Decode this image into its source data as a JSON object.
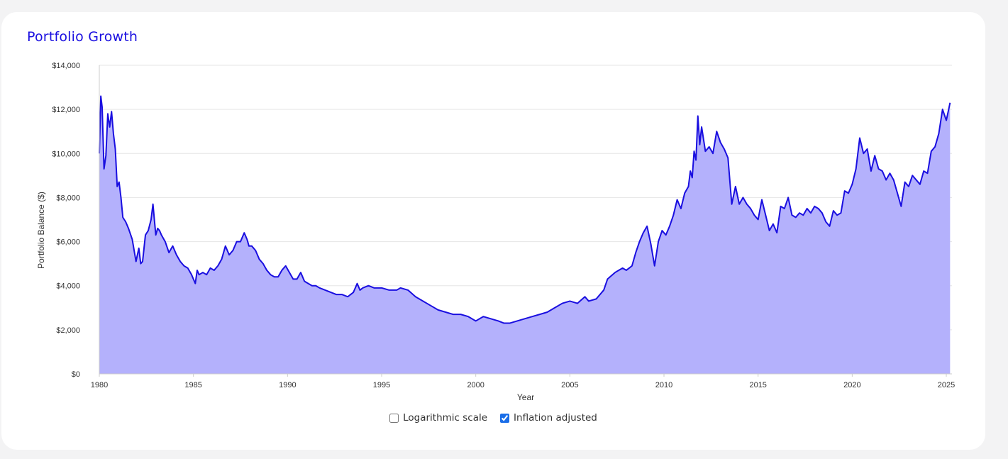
{
  "card": {
    "title": "Portfolio Growth"
  },
  "colors": {
    "title": "#1a0fe0",
    "line": "#1a0fe0",
    "area": "#b4b1fc",
    "grid": "#e6e6e6"
  },
  "controls": {
    "log_scale": {
      "label": "Logarithmic scale",
      "checked": false
    },
    "inflation": {
      "label": "Inflation adjusted",
      "checked": true
    }
  },
  "chart_data": {
    "type": "area",
    "title": "",
    "xlabel": "Year",
    "ylabel": "Portfolio Balance ($)",
    "xlim": [
      1980,
      2025.3
    ],
    "ylim": [
      0,
      14000
    ],
    "x_ticks": [
      1980,
      1985,
      1990,
      1995,
      2000,
      2005,
      2010,
      2015,
      2020,
      2025
    ],
    "x_tick_labels": [
      "1980",
      "1985",
      "1990",
      "1995",
      "2000",
      "2005",
      "2010",
      "2015",
      "2020",
      "2025"
    ],
    "y_ticks": [
      0,
      2000,
      4000,
      6000,
      8000,
      10000,
      12000,
      14000
    ],
    "y_tick_labels": [
      "$0",
      "$2,000",
      "$4,000",
      "$6,000",
      "$8,000",
      "$10,000",
      "$12,000",
      "$14,000"
    ],
    "grid": true,
    "legend": "none",
    "x": [
      1980.0,
      1980.08,
      1980.15,
      1980.25,
      1980.35,
      1980.45,
      1980.55,
      1980.65,
      1980.75,
      1980.85,
      1980.95,
      1981.05,
      1981.15,
      1981.25,
      1981.4,
      1981.55,
      1981.75,
      1981.95,
      1982.1,
      1982.2,
      1982.3,
      1982.45,
      1982.6,
      1982.75,
      1982.85,
      1983.0,
      1983.1,
      1983.2,
      1983.3,
      1983.5,
      1983.7,
      1983.9,
      1984.1,
      1984.3,
      1984.5,
      1984.7,
      1984.9,
      1985.1,
      1985.2,
      1985.3,
      1985.5,
      1985.7,
      1985.9,
      1986.1,
      1986.3,
      1986.5,
      1986.7,
      1986.9,
      1987.1,
      1987.3,
      1987.5,
      1987.7,
      1987.85,
      1987.95,
      1988.1,
      1988.3,
      1988.5,
      1988.7,
      1988.9,
      1989.1,
      1989.3,
      1989.5,
      1989.7,
      1989.9,
      1990.1,
      1990.3,
      1990.5,
      1990.7,
      1990.9,
      1991.1,
      1991.3,
      1991.5,
      1991.7,
      1992.0,
      1992.3,
      1992.6,
      1992.9,
      1993.2,
      1993.5,
      1993.7,
      1993.85,
      1994.0,
      1994.3,
      1994.6,
      1995.0,
      1995.4,
      1995.8,
      1996.0,
      1996.4,
      1996.8,
      1997.2,
      1997.6,
      1998.0,
      1998.4,
      1998.8,
      1999.2,
      1999.6,
      2000.0,
      2000.4,
      2000.8,
      2001.2,
      2001.5,
      2001.8,
      2002.2,
      2002.6,
      2003.0,
      2003.4,
      2003.8,
      2004.2,
      2004.6,
      2005.0,
      2005.4,
      2005.8,
      2006.0,
      2006.4,
      2006.8,
      2007.0,
      2007.4,
      2007.8,
      2008.0,
      2008.3,
      2008.5,
      2008.7,
      2008.9,
      2009.1,
      2009.3,
      2009.5,
      2009.7,
      2009.9,
      2010.1,
      2010.3,
      2010.5,
      2010.7,
      2010.9,
      2011.1,
      2011.3,
      2011.4,
      2011.5,
      2011.6,
      2011.7,
      2011.8,
      2011.9,
      2012.0,
      2012.2,
      2012.4,
      2012.6,
      2012.8,
      2013.0,
      2013.2,
      2013.4,
      2013.6,
      2013.8,
      2014.0,
      2014.2,
      2014.4,
      2014.6,
      2014.8,
      2015.0,
      2015.2,
      2015.4,
      2015.6,
      2015.8,
      2016.0,
      2016.2,
      2016.4,
      2016.6,
      2016.8,
      2017.0,
      2017.2,
      2017.4,
      2017.6,
      2017.8,
      2018.0,
      2018.2,
      2018.4,
      2018.6,
      2018.8,
      2019.0,
      2019.2,
      2019.4,
      2019.6,
      2019.8,
      2020.0,
      2020.2,
      2020.4,
      2020.6,
      2020.8,
      2021.0,
      2021.2,
      2021.4,
      2021.6,
      2021.8,
      2022.0,
      2022.2,
      2022.4,
      2022.6,
      2022.8,
      2023.0,
      2023.2,
      2023.4,
      2023.6,
      2023.8,
      2024.0,
      2024.2,
      2024.4,
      2024.6,
      2024.8,
      2025.0,
      2025.2
    ],
    "series": [
      {
        "values": [
          10000,
          12600,
          12100,
          9300,
          9900,
          11800,
          11200,
          11900,
          10900,
          10200,
          8500,
          8700,
          8000,
          7100,
          6900,
          6600,
          6100,
          5100,
          5700,
          5000,
          5100,
          6300,
          6500,
          7000,
          7700,
          6300,
          6600,
          6500,
          6300,
          6000,
          5500,
          5800,
          5400,
          5100,
          4900,
          4800,
          4500,
          4100,
          4700,
          4500,
          4600,
          4500,
          4800,
          4700,
          4900,
          5200,
          5800,
          5400,
          5600,
          6000,
          6000,
          6400,
          6100,
          5800,
          5800,
          5600,
          5200,
          5000,
          4700,
          4500,
          4400,
          4400,
          4700,
          4900,
          4600,
          4300,
          4300,
          4600,
          4200,
          4100,
          4000,
          4000,
          3900,
          3800,
          3700,
          3600,
          3600,
          3500,
          3700,
          4100,
          3800,
          3900,
          4000,
          3900,
          3900,
          3800,
          3800,
          3900,
          3800,
          3500,
          3300,
          3100,
          2900,
          2800,
          2700,
          2700,
          2600,
          2400,
          2600,
          2500,
          2400,
          2300,
          2300,
          2400,
          2500,
          2600,
          2700,
          2800,
          3000,
          3200,
          3300,
          3200,
          3500,
          3300,
          3400,
          3800,
          4300,
          4600,
          4800,
          4700,
          4900,
          5500,
          6000,
          6400,
          6700,
          5900,
          4900,
          6000,
          6500,
          6300,
          6700,
          7200,
          7900,
          7500,
          8200,
          8500,
          9200,
          8900,
          10100,
          9700,
          11700,
          10400,
          11200,
          10100,
          10300,
          10000,
          11000,
          10500,
          10200,
          9800,
          7700,
          8500,
          7700,
          8000,
          7700,
          7500,
          7200,
          7000,
          7900,
          7200,
          6500,
          6800,
          6400,
          7600,
          7500,
          8000,
          7200,
          7100,
          7300,
          7200,
          7500,
          7300,
          7600,
          7500,
          7300,
          6900,
          6700,
          7400,
          7200,
          7300,
          8300,
          8200,
          8600,
          9300,
          10700,
          10000,
          10200,
          9200,
          9900,
          9300,
          9200,
          8800,
          9100,
          8800,
          8200,
          7600,
          8700,
          8500,
          9000,
          8800,
          8600,
          9200,
          9100,
          10100,
          10300,
          10900,
          12000,
          11500,
          12300
        ]
      }
    ]
  }
}
